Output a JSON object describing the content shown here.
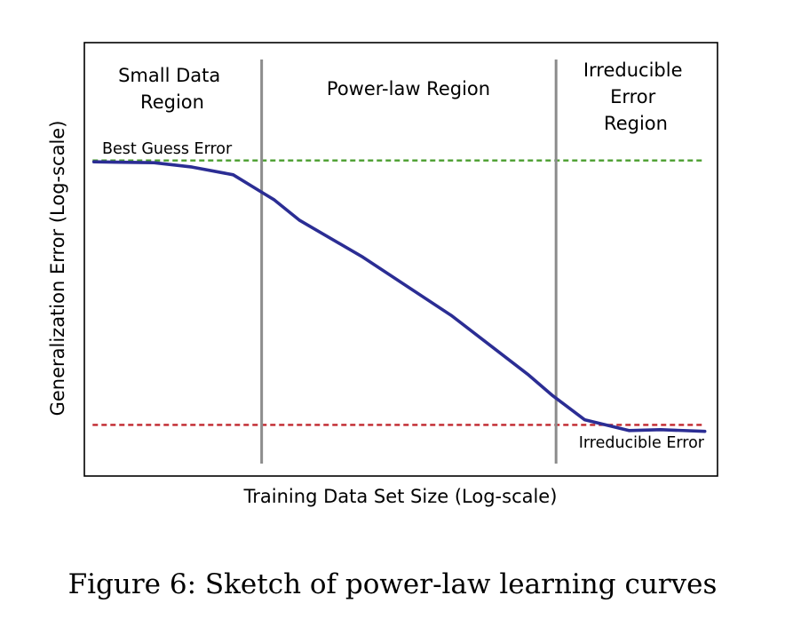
{
  "caption": "Figure 6: Sketch of power-law learning curves",
  "chart_data": {
    "type": "line",
    "title": "",
    "xlabel": "Training Data Set Size (Log-scale)",
    "ylabel": "Generalization Error (Log-scale)",
    "x_scale": "log",
    "y_scale": "log",
    "xlim": [
      0,
      100
    ],
    "ylim": [
      0,
      100
    ],
    "grid": false,
    "ticks_shown": false,
    "series": [
      {
        "color": "#2b2d94",
        "x": [
          1.5,
          11,
          17,
          23.5,
          28,
          30,
          34,
          44,
          58,
          70,
          74,
          79,
          86,
          91,
          98
        ],
        "y": [
          72.5,
          72.3,
          71.3,
          69.5,
          65.5,
          63.7,
          59,
          50.5,
          37,
          23.5,
          18.5,
          13,
          10.5,
          10.7,
          10.3
        ]
      }
    ],
    "reference_lines": [
      {
        "label": "Best Guess Error",
        "y": 72.8,
        "color": "#4a9e2e",
        "style": "dashed"
      },
      {
        "label": "Irreducible Error",
        "y": 11.8,
        "color": "#c0272d",
        "style": "dashed"
      }
    ],
    "region_boundaries": [
      {
        "x": 28,
        "color": "#8c8c8c"
      },
      {
        "x": 74.5,
        "color": "#8c8c8c"
      }
    ],
    "regions": [
      {
        "label_lines": [
          "Small Data",
          "Region"
        ]
      },
      {
        "label_lines": [
          "Power-law Region"
        ]
      },
      {
        "label_lines": [
          "Irreducible",
          "Error",
          "Region"
        ]
      }
    ]
  }
}
